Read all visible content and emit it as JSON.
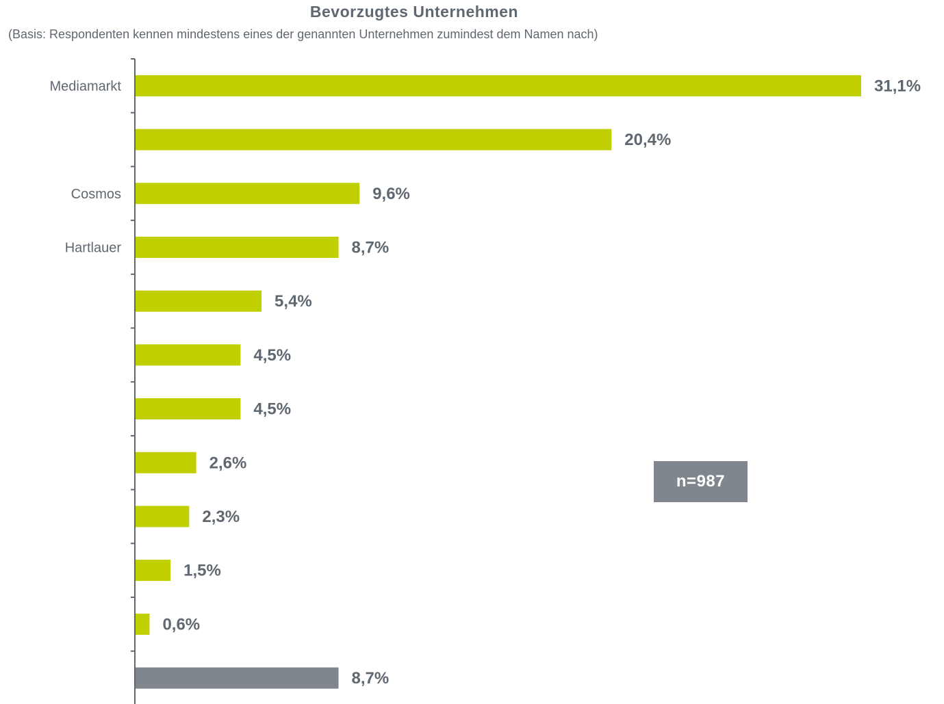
{
  "header": {
    "title": "Bevorzugtes Unternehmen",
    "subtitle": "(Basis: Respondenten kennen mindestens eines der genannten Unternehmen zumindest dem Namen nach)"
  },
  "note": {
    "sample_size": "n=987"
  },
  "colors": {
    "bar": "#bfcf00",
    "bar_last": "#7f868e",
    "text": "#5f6770",
    "axis": "#5f6770"
  },
  "chart_data": {
    "type": "bar",
    "orientation": "horizontal",
    "title": "Bevorzugtes Unternehmen",
    "subtitle": "(Basis: Respondenten kennen mindestens eines der genannten Unternehmen zumindest dem Namen nach)",
    "categories": [
      "Mediamarkt",
      "",
      "Cosmos",
      "Hartlauer",
      "",
      "",
      "",
      "",
      "",
      "",
      "",
      ""
    ],
    "values": [
      31.1,
      20.4,
      9.6,
      8.7,
      5.4,
      4.5,
      4.5,
      2.6,
      2.3,
      1.5,
      0.6,
      8.7
    ],
    "value_labels": [
      "31,1%",
      "20,4%",
      "9,6%",
      "8,7%",
      "5,4%",
      "4,5%",
      "4,5%",
      "2,6%",
      "2,3%",
      "1,5%",
      "0,6%",
      "8,7%"
    ],
    "xlim": [
      0,
      31.1
    ],
    "xlabel": "",
    "ylabel": "",
    "grid": false,
    "legend": "none"
  }
}
